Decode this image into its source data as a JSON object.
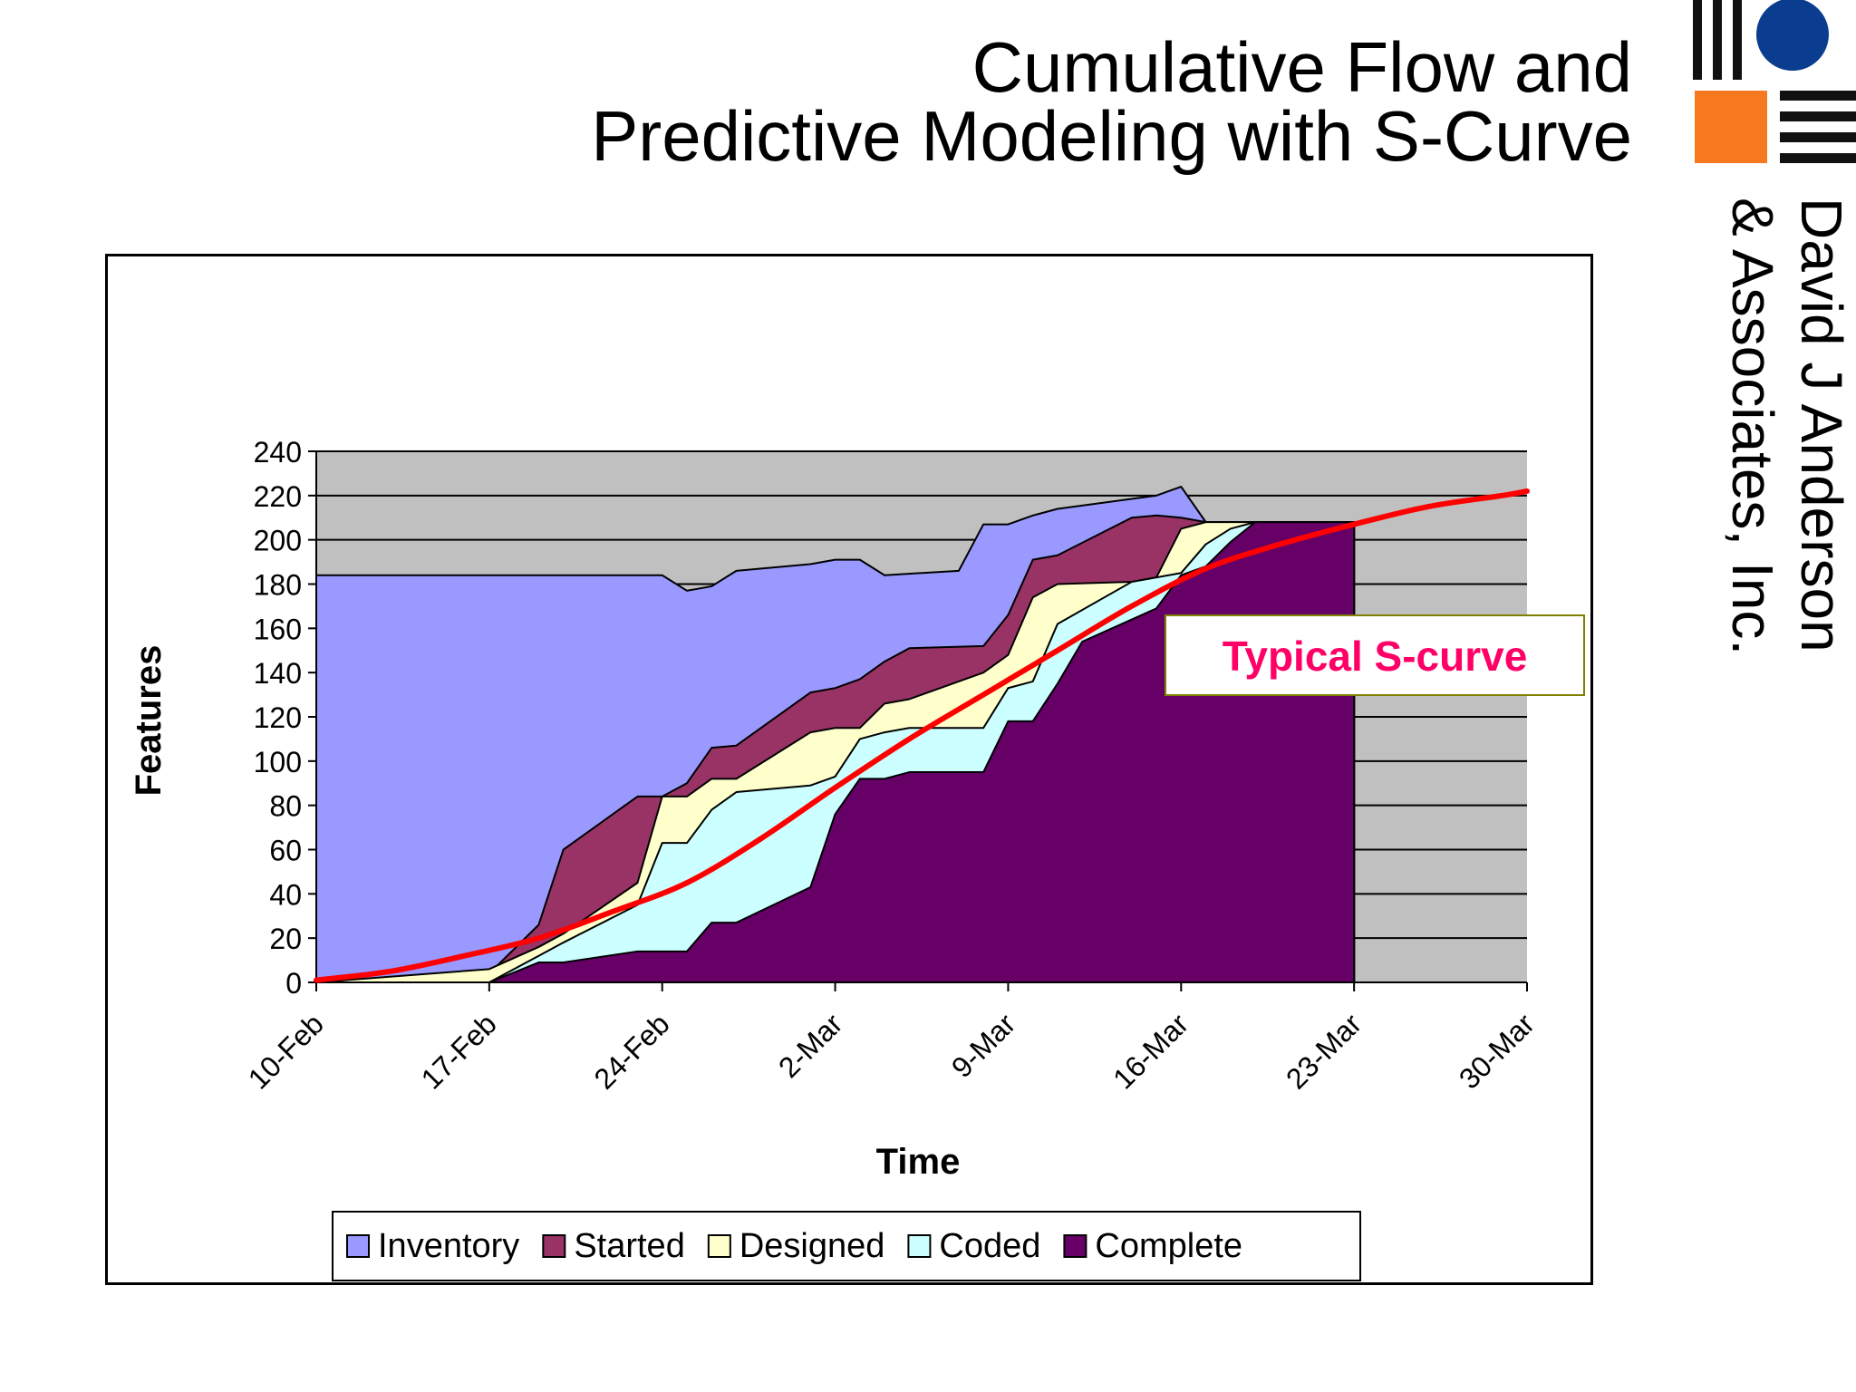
{
  "slide": {
    "title_line1": "Cumulative Flow and",
    "title_line2": "Predictive Modeling with S-Curve"
  },
  "logo": {
    "company_line1": "David J Anderson",
    "company_line2": "& Associates, Inc.",
    "colors": {
      "blue": "#0a3d8f",
      "orange": "#f7791f",
      "black": "#111111"
    }
  },
  "chart_data": {
    "type": "area",
    "stacked": true,
    "xlabel": "Time",
    "ylabel": "Features",
    "ylim": [
      0,
      240
    ],
    "xlim": [
      "2008-02-10",
      "2008-03-30"
    ],
    "yticks": [
      0,
      20,
      40,
      60,
      80,
      100,
      120,
      140,
      160,
      180,
      200,
      220,
      240
    ],
    "xticks": [
      {
        "date": "2008-02-10",
        "label": "10-Feb"
      },
      {
        "date": "2008-02-17",
        "label": "17-Feb"
      },
      {
        "date": "2008-02-24",
        "label": "24-Feb"
      },
      {
        "date": "2008-03-02",
        "label": "2-Mar"
      },
      {
        "date": "2008-03-09",
        "label": "9-Mar"
      },
      {
        "date": "2008-03-16",
        "label": "16-Mar"
      },
      {
        "date": "2008-03-23",
        "label": "23-Mar"
      },
      {
        "date": "2008-03-30",
        "label": "30-Mar"
      }
    ],
    "grid": true,
    "legend_position": "bottom",
    "plot_background": "#c0c0c0",
    "series": [
      {
        "name": "Inventory",
        "color": "#9999ff",
        "cumulative": [
          [
            "2008-02-10",
            184
          ],
          [
            "2008-02-24",
            184
          ],
          [
            "2008-02-25",
            177
          ],
          [
            "2008-02-26",
            179
          ],
          [
            "2008-02-27",
            186
          ],
          [
            "2008-03-01",
            189
          ],
          [
            "2008-03-02",
            191
          ],
          [
            "2008-03-03",
            191
          ],
          [
            "2008-03-04",
            184
          ],
          [
            "2008-03-07",
            186
          ],
          [
            "2008-03-08",
            207
          ],
          [
            "2008-03-09",
            207
          ],
          [
            "2008-03-10",
            211
          ],
          [
            "2008-03-11",
            214
          ],
          [
            "2008-03-15",
            220
          ],
          [
            "2008-03-16",
            224
          ],
          [
            "2008-03-17",
            208
          ],
          [
            "2008-03-23",
            208
          ]
        ]
      },
      {
        "name": "Started",
        "color": "#993366",
        "cumulative": [
          [
            "2008-02-10",
            0
          ],
          [
            "2008-02-17",
            4
          ],
          [
            "2008-02-19",
            26
          ],
          [
            "2008-02-20",
            60
          ],
          [
            "2008-02-23",
            84
          ],
          [
            "2008-02-24",
            84
          ],
          [
            "2008-02-25",
            90
          ],
          [
            "2008-02-26",
            106
          ],
          [
            "2008-02-27",
            107
          ],
          [
            "2008-03-01",
            131
          ],
          [
            "2008-03-02",
            133
          ],
          [
            "2008-03-03",
            137
          ],
          [
            "2008-03-04",
            145
          ],
          [
            "2008-03-05",
            151
          ],
          [
            "2008-03-08",
            152
          ],
          [
            "2008-03-09",
            166
          ],
          [
            "2008-03-10",
            191
          ],
          [
            "2008-03-11",
            193
          ],
          [
            "2008-03-14",
            210
          ],
          [
            "2008-03-15",
            211
          ],
          [
            "2008-03-16",
            210
          ],
          [
            "2008-03-17",
            208
          ],
          [
            "2008-03-23",
            208
          ]
        ]
      },
      {
        "name": "Designed",
        "color": "#ffffcc",
        "cumulative": [
          [
            "2008-02-10",
            0
          ],
          [
            "2008-02-17",
            6
          ],
          [
            "2008-02-19",
            16
          ],
          [
            "2008-02-20",
            22
          ],
          [
            "2008-02-23",
            45
          ],
          [
            "2008-02-24",
            84
          ],
          [
            "2008-02-25",
            84
          ],
          [
            "2008-02-26",
            92
          ],
          [
            "2008-02-27",
            92
          ],
          [
            "2008-03-01",
            113
          ],
          [
            "2008-03-02",
            115
          ],
          [
            "2008-03-03",
            115
          ],
          [
            "2008-03-04",
            126
          ],
          [
            "2008-03-05",
            128
          ],
          [
            "2008-03-08",
            140
          ],
          [
            "2008-03-09",
            148
          ],
          [
            "2008-03-10",
            174
          ],
          [
            "2008-03-11",
            180
          ],
          [
            "2008-03-14",
            181
          ],
          [
            "2008-03-15",
            183
          ],
          [
            "2008-03-16",
            205
          ],
          [
            "2008-03-17",
            208
          ],
          [
            "2008-03-23",
            208
          ]
        ]
      },
      {
        "name": "Coded",
        "color": "#ccffff",
        "cumulative": [
          [
            "2008-02-10",
            0
          ],
          [
            "2008-02-17",
            0
          ],
          [
            "2008-02-19",
            12
          ],
          [
            "2008-02-20",
            18
          ],
          [
            "2008-02-23",
            35
          ],
          [
            "2008-02-24",
            63
          ],
          [
            "2008-02-25",
            63
          ],
          [
            "2008-02-26",
            78
          ],
          [
            "2008-02-27",
            86
          ],
          [
            "2008-03-01",
            89
          ],
          [
            "2008-03-02",
            93
          ],
          [
            "2008-03-03",
            110
          ],
          [
            "2008-03-04",
            113
          ],
          [
            "2008-03-05",
            115
          ],
          [
            "2008-03-08",
            115
          ],
          [
            "2008-03-09",
            133
          ],
          [
            "2008-03-10",
            136
          ],
          [
            "2008-03-11",
            162
          ],
          [
            "2008-03-14",
            181
          ],
          [
            "2008-03-15",
            183
          ],
          [
            "2008-03-16",
            185
          ],
          [
            "2008-03-17",
            198
          ],
          [
            "2008-03-18",
            205
          ],
          [
            "2008-03-19",
            208
          ],
          [
            "2008-03-23",
            208
          ]
        ]
      },
      {
        "name": "Complete",
        "color": "#660066",
        "cumulative": [
          [
            "2008-02-10",
            0
          ],
          [
            "2008-02-17",
            0
          ],
          [
            "2008-02-19",
            9
          ],
          [
            "2008-02-20",
            9
          ],
          [
            "2008-02-23",
            14
          ],
          [
            "2008-02-24",
            14
          ],
          [
            "2008-02-25",
            14
          ],
          [
            "2008-02-26",
            27
          ],
          [
            "2008-02-27",
            27
          ],
          [
            "2008-03-01",
            43
          ],
          [
            "2008-03-02",
            76
          ],
          [
            "2008-03-03",
            92
          ],
          [
            "2008-03-04",
            92
          ],
          [
            "2008-03-05",
            95
          ],
          [
            "2008-03-08",
            95
          ],
          [
            "2008-03-09",
            118
          ],
          [
            "2008-03-10",
            118
          ],
          [
            "2008-03-11",
            135
          ],
          [
            "2008-03-12",
            154
          ],
          [
            "2008-03-15",
            169
          ],
          [
            "2008-03-16",
            184
          ],
          [
            "2008-03-17",
            188
          ],
          [
            "2008-03-18",
            199
          ],
          [
            "2008-03-19",
            208
          ],
          [
            "2008-03-23",
            208
          ]
        ]
      }
    ],
    "s_curve": {
      "color": "#ff0000",
      "points": [
        [
          "2008-02-10",
          1
        ],
        [
          "2008-02-13",
          5
        ],
        [
          "2008-02-16",
          12
        ],
        [
          "2008-02-19",
          20
        ],
        [
          "2008-02-22",
          32
        ],
        [
          "2008-02-25",
          45
        ],
        [
          "2008-02-28",
          65
        ],
        [
          "2008-03-02",
          88
        ],
        [
          "2008-03-05",
          110
        ],
        [
          "2008-03-08",
          130
        ],
        [
          "2008-03-11",
          150
        ],
        [
          "2008-03-14",
          170
        ],
        [
          "2008-03-17",
          187
        ],
        [
          "2008-03-20",
          198
        ],
        [
          "2008-03-23",
          207
        ],
        [
          "2008-03-26",
          215
        ],
        [
          "2008-03-29",
          220
        ],
        [
          "2008-03-30",
          222
        ]
      ]
    },
    "annotation": {
      "text": "Typical S-curve",
      "color": "#ff0066",
      "border_color": "#808000"
    }
  }
}
